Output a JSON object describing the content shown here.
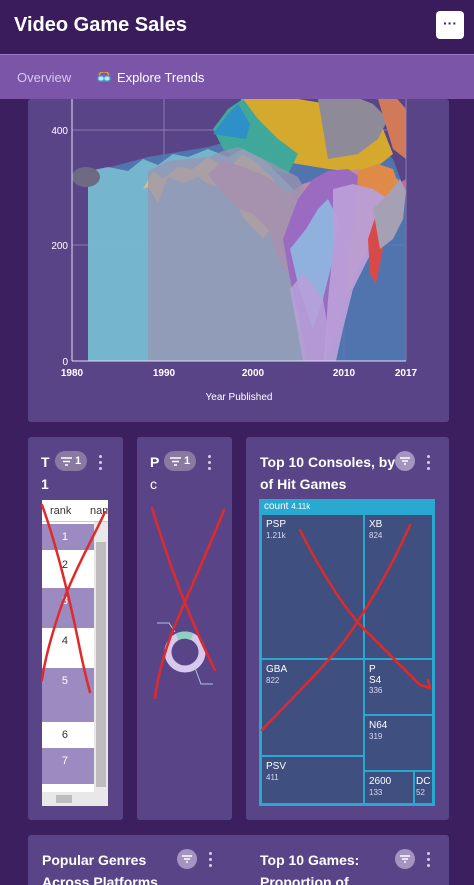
{
  "header": {
    "title": "Video Game Sales",
    "menu_label": "···"
  },
  "tabs": [
    {
      "label": "Overview"
    },
    {
      "label": "Explore Trends"
    }
  ],
  "main_chart": {
    "xlabel": "Year Published",
    "x_ticks": [
      "1980",
      "1990",
      "2000",
      "2010",
      "2017"
    ],
    "y_ticks": [
      "400",
      "200",
      "0"
    ]
  },
  "card_a": {
    "title_fragment_1": "T",
    "title_fragment_2": "1",
    "filter_count": "1",
    "col_rank": "rank",
    "col_name": "nam",
    "rows": [
      "1",
      "2",
      "3",
      "4",
      "5",
      "6",
      "7"
    ]
  },
  "card_b": {
    "title_fragment_1": "P",
    "title_fragment_2": "c",
    "filter_count": "1"
  },
  "card_c": {
    "title": "Top 10 Consoles, by # of Hit Games",
    "root_label": "count",
    "root_value": "4.11k",
    "tiles": [
      {
        "name": "PSP",
        "count": "1.21k"
      },
      {
        "name": "XB",
        "count": "824"
      },
      {
        "name": "GBA",
        "count": "822"
      },
      {
        "name": "PS4",
        "count": "336",
        "line1": "P",
        "line2": "S4"
      },
      {
        "name": "N64",
        "count": "319"
      },
      {
        "name": "PSV",
        "count": "411"
      },
      {
        "name": "2600",
        "count": "133"
      },
      {
        "name": "DC",
        "count": "52"
      }
    ]
  },
  "card_d": {
    "title": "Popular Genres Across Platforms"
  },
  "card_e": {
    "title": "Top 10 Games: Proportion of"
  },
  "colors": {
    "background": "#3b1f5e",
    "card": "#5a4488",
    "tab_bar": "#7a55a8",
    "treemap_border": "#29a8d0",
    "annotation": "#e02a2a"
  }
}
